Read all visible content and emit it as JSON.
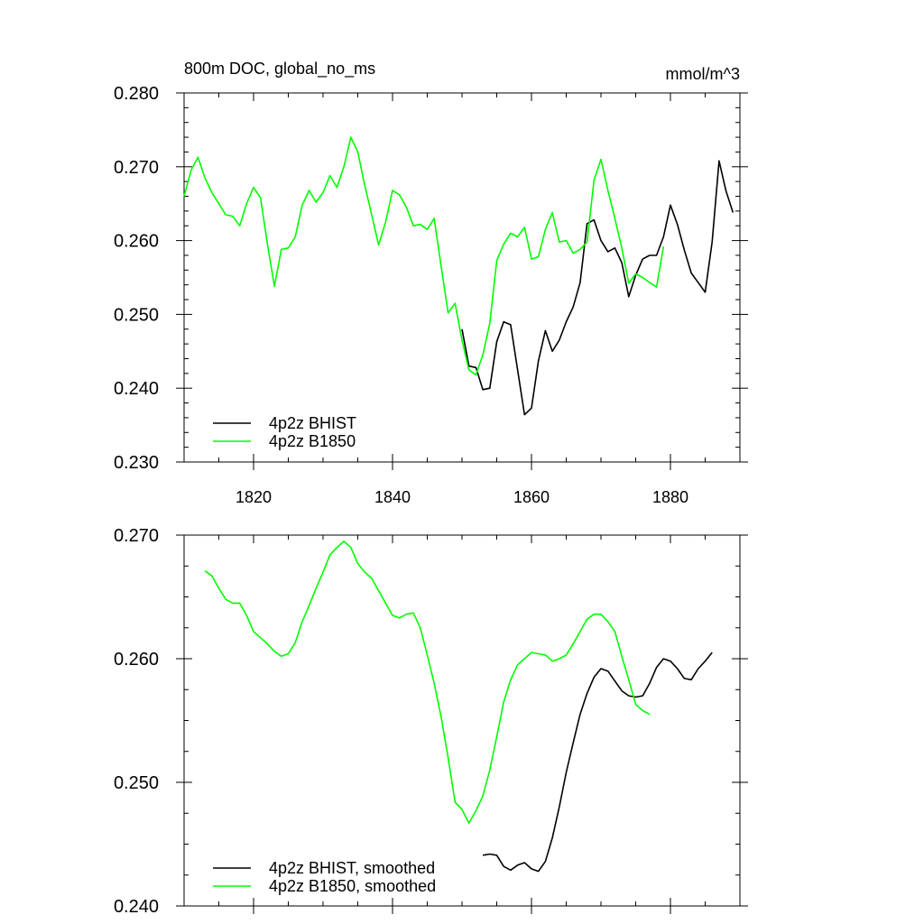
{
  "chart_data": [
    {
      "type": "line",
      "title": "800m DOC, global_no_ms",
      "units": "mmol/m^3",
      "xlim": [
        1810,
        1890
      ],
      "ylim": [
        0.23,
        0.28
      ],
      "xticks": [
        1820,
        1840,
        1860,
        1880
      ],
      "xtick_labels": [
        "1820",
        "1840",
        "1860",
        "1880"
      ],
      "yticks": [
        0.23,
        0.24,
        0.25,
        0.26,
        0.27,
        0.28
      ],
      "ytick_labels": [
        "0.230",
        "0.240",
        "0.250",
        "0.260",
        "0.270",
        "0.280"
      ],
      "grid": false,
      "legend_position": "bottom-left",
      "series": [
        {
          "name": "4p2z BHIST",
          "color": "#000000",
          "x": [
            1850,
            1851,
            1852,
            1853,
            1854,
            1855,
            1856,
            1857,
            1858,
            1859,
            1860,
            1861,
            1862,
            1863,
            1864,
            1865,
            1866,
            1867,
            1868,
            1869,
            1870,
            1871,
            1872,
            1873,
            1874,
            1875,
            1876,
            1877,
            1878,
            1879,
            1880,
            1881,
            1882,
            1883,
            1884,
            1885,
            1886,
            1887,
            1888,
            1889
          ],
          "values": [
            0.248,
            0.243,
            0.2428,
            0.2398,
            0.24,
            0.2463,
            0.249,
            0.2486,
            0.2425,
            0.2364,
            0.2373,
            0.2437,
            0.2478,
            0.245,
            0.2465,
            0.249,
            0.251,
            0.2543,
            0.2623,
            0.2628,
            0.26,
            0.2585,
            0.259,
            0.257,
            0.2524,
            0.2553,
            0.2575,
            0.258,
            0.258,
            0.2605,
            0.2648,
            0.2622,
            0.2587,
            0.2556,
            0.2543,
            0.253,
            0.2598,
            0.2708,
            0.2667,
            0.2638
          ]
        },
        {
          "name": "4p2z B1850",
          "color": "#00ff00",
          "x": [
            1810,
            1811,
            1812,
            1813,
            1814,
            1815,
            1816,
            1817,
            1818,
            1819,
            1820,
            1821,
            1822,
            1823,
            1824,
            1825,
            1826,
            1827,
            1828,
            1829,
            1830,
            1831,
            1832,
            1833,
            1834,
            1835,
            1836,
            1837,
            1838,
            1839,
            1840,
            1841,
            1842,
            1843,
            1844,
            1845,
            1846,
            1847,
            1848,
            1849,
            1850,
            1851,
            1852,
            1853,
            1854,
            1855,
            1856,
            1857,
            1858,
            1859,
            1860,
            1861,
            1862,
            1863,
            1864,
            1865,
            1866,
            1867,
            1868,
            1869,
            1870,
            1871,
            1872,
            1873,
            1874,
            1875,
            1876,
            1877,
            1878,
            1879,
            1880
          ],
          "values": [
            0.266,
            0.2695,
            0.2713,
            0.2685,
            0.2665,
            0.265,
            0.2635,
            0.2633,
            0.262,
            0.265,
            0.2672,
            0.2658,
            0.2595,
            0.2538,
            0.2588,
            0.259,
            0.2605,
            0.2648,
            0.2668,
            0.2652,
            0.2665,
            0.2688,
            0.2672,
            0.27,
            0.274,
            0.272,
            0.2675,
            0.2635,
            0.2594,
            0.2625,
            0.2668,
            0.2662,
            0.2645,
            0.262,
            0.2622,
            0.2615,
            0.263,
            0.2565,
            0.2502,
            0.2515,
            0.2465,
            0.2425,
            0.2418,
            0.2445,
            0.2488,
            0.2573,
            0.2595,
            0.261,
            0.2605,
            0.2618,
            0.2575,
            0.2578,
            0.2615,
            0.2638,
            0.2598,
            0.26,
            0.2583,
            0.2588,
            0.2598,
            0.2682,
            0.271,
            0.2668,
            0.263,
            0.259,
            0.2542,
            0.2555,
            0.255,
            0.2543,
            0.2537,
            0.2592,
            null
          ]
        }
      ]
    },
    {
      "type": "line",
      "title": "",
      "xlim": [
        1810,
        1890
      ],
      "ylim": [
        0.24,
        0.27
      ],
      "xticks": [
        1820,
        1840,
        1860,
        1880
      ],
      "xtick_labels": [],
      "yticks": [
        0.24,
        0.25,
        0.26,
        0.27
      ],
      "ytick_labels": [
        "0.240",
        "0.250",
        "0.260",
        "0.270"
      ],
      "grid": false,
      "legend_position": "bottom-left",
      "series": [
        {
          "name": "4p2z BHIST, smoothed",
          "color": "#000000",
          "x": [
            1853,
            1854,
            1855,
            1856,
            1857,
            1858,
            1859,
            1860,
            1861,
            1862,
            1863,
            1864,
            1865,
            1866,
            1867,
            1868,
            1869,
            1870,
            1871,
            1872,
            1873,
            1874,
            1875,
            1876,
            1877,
            1878,
            1879,
            1880,
            1881,
            1882,
            1883,
            1884,
            1885,
            1886
          ],
          "values": [
            0.2441,
            0.2442,
            0.2441,
            0.2432,
            0.2429,
            0.2433,
            0.2435,
            0.243,
            0.2428,
            0.2436,
            0.2455,
            0.248,
            0.2508,
            0.2532,
            0.2555,
            0.2572,
            0.2585,
            0.2592,
            0.259,
            0.2582,
            0.2574,
            0.257,
            0.2569,
            0.257,
            0.258,
            0.2593,
            0.26,
            0.2598,
            0.2592,
            0.2584,
            0.2583,
            0.2592,
            0.2598,
            0.2605
          ]
        },
        {
          "name": "4p2z B1850, smoothed",
          "color": "#00ff00",
          "x": [
            1813,
            1814,
            1815,
            1816,
            1817,
            1818,
            1819,
            1820,
            1821,
            1822,
            1823,
            1824,
            1825,
            1826,
            1827,
            1828,
            1829,
            1830,
            1831,
            1832,
            1833,
            1834,
            1835,
            1836,
            1837,
            1838,
            1839,
            1840,
            1841,
            1842,
            1843,
            1844,
            1845,
            1846,
            1847,
            1848,
            1849,
            1850,
            1851,
            1852,
            1853,
            1854,
            1855,
            1856,
            1857,
            1858,
            1859,
            1860,
            1861,
            1862,
            1863,
            1864,
            1865,
            1866,
            1867,
            1868,
            1869,
            1870,
            1871,
            1872,
            1873,
            1874,
            1875,
            1876,
            1877
          ],
          "values": [
            0.2671,
            0.2667,
            0.2657,
            0.2648,
            0.2645,
            0.2645,
            0.2635,
            0.2622,
            0.2617,
            0.2612,
            0.2606,
            0.2602,
            0.2604,
            0.2613,
            0.263,
            0.2643,
            0.2657,
            0.267,
            0.2684,
            0.269,
            0.2695,
            0.269,
            0.2677,
            0.267,
            0.2665,
            0.2655,
            0.2645,
            0.2635,
            0.2633,
            0.2636,
            0.2637,
            0.2625,
            0.2603,
            0.258,
            0.2553,
            0.252,
            0.2484,
            0.2478,
            0.2467,
            0.2477,
            0.2489,
            0.251,
            0.2537,
            0.2565,
            0.2583,
            0.2595,
            0.26,
            0.2605,
            0.2604,
            0.2603,
            0.2598,
            0.26,
            0.2603,
            0.2612,
            0.2622,
            0.2632,
            0.2636,
            0.2636,
            0.263,
            0.2622,
            0.2602,
            0.2583,
            0.2563,
            0.2558,
            0.2555
          ]
        }
      ]
    }
  ]
}
